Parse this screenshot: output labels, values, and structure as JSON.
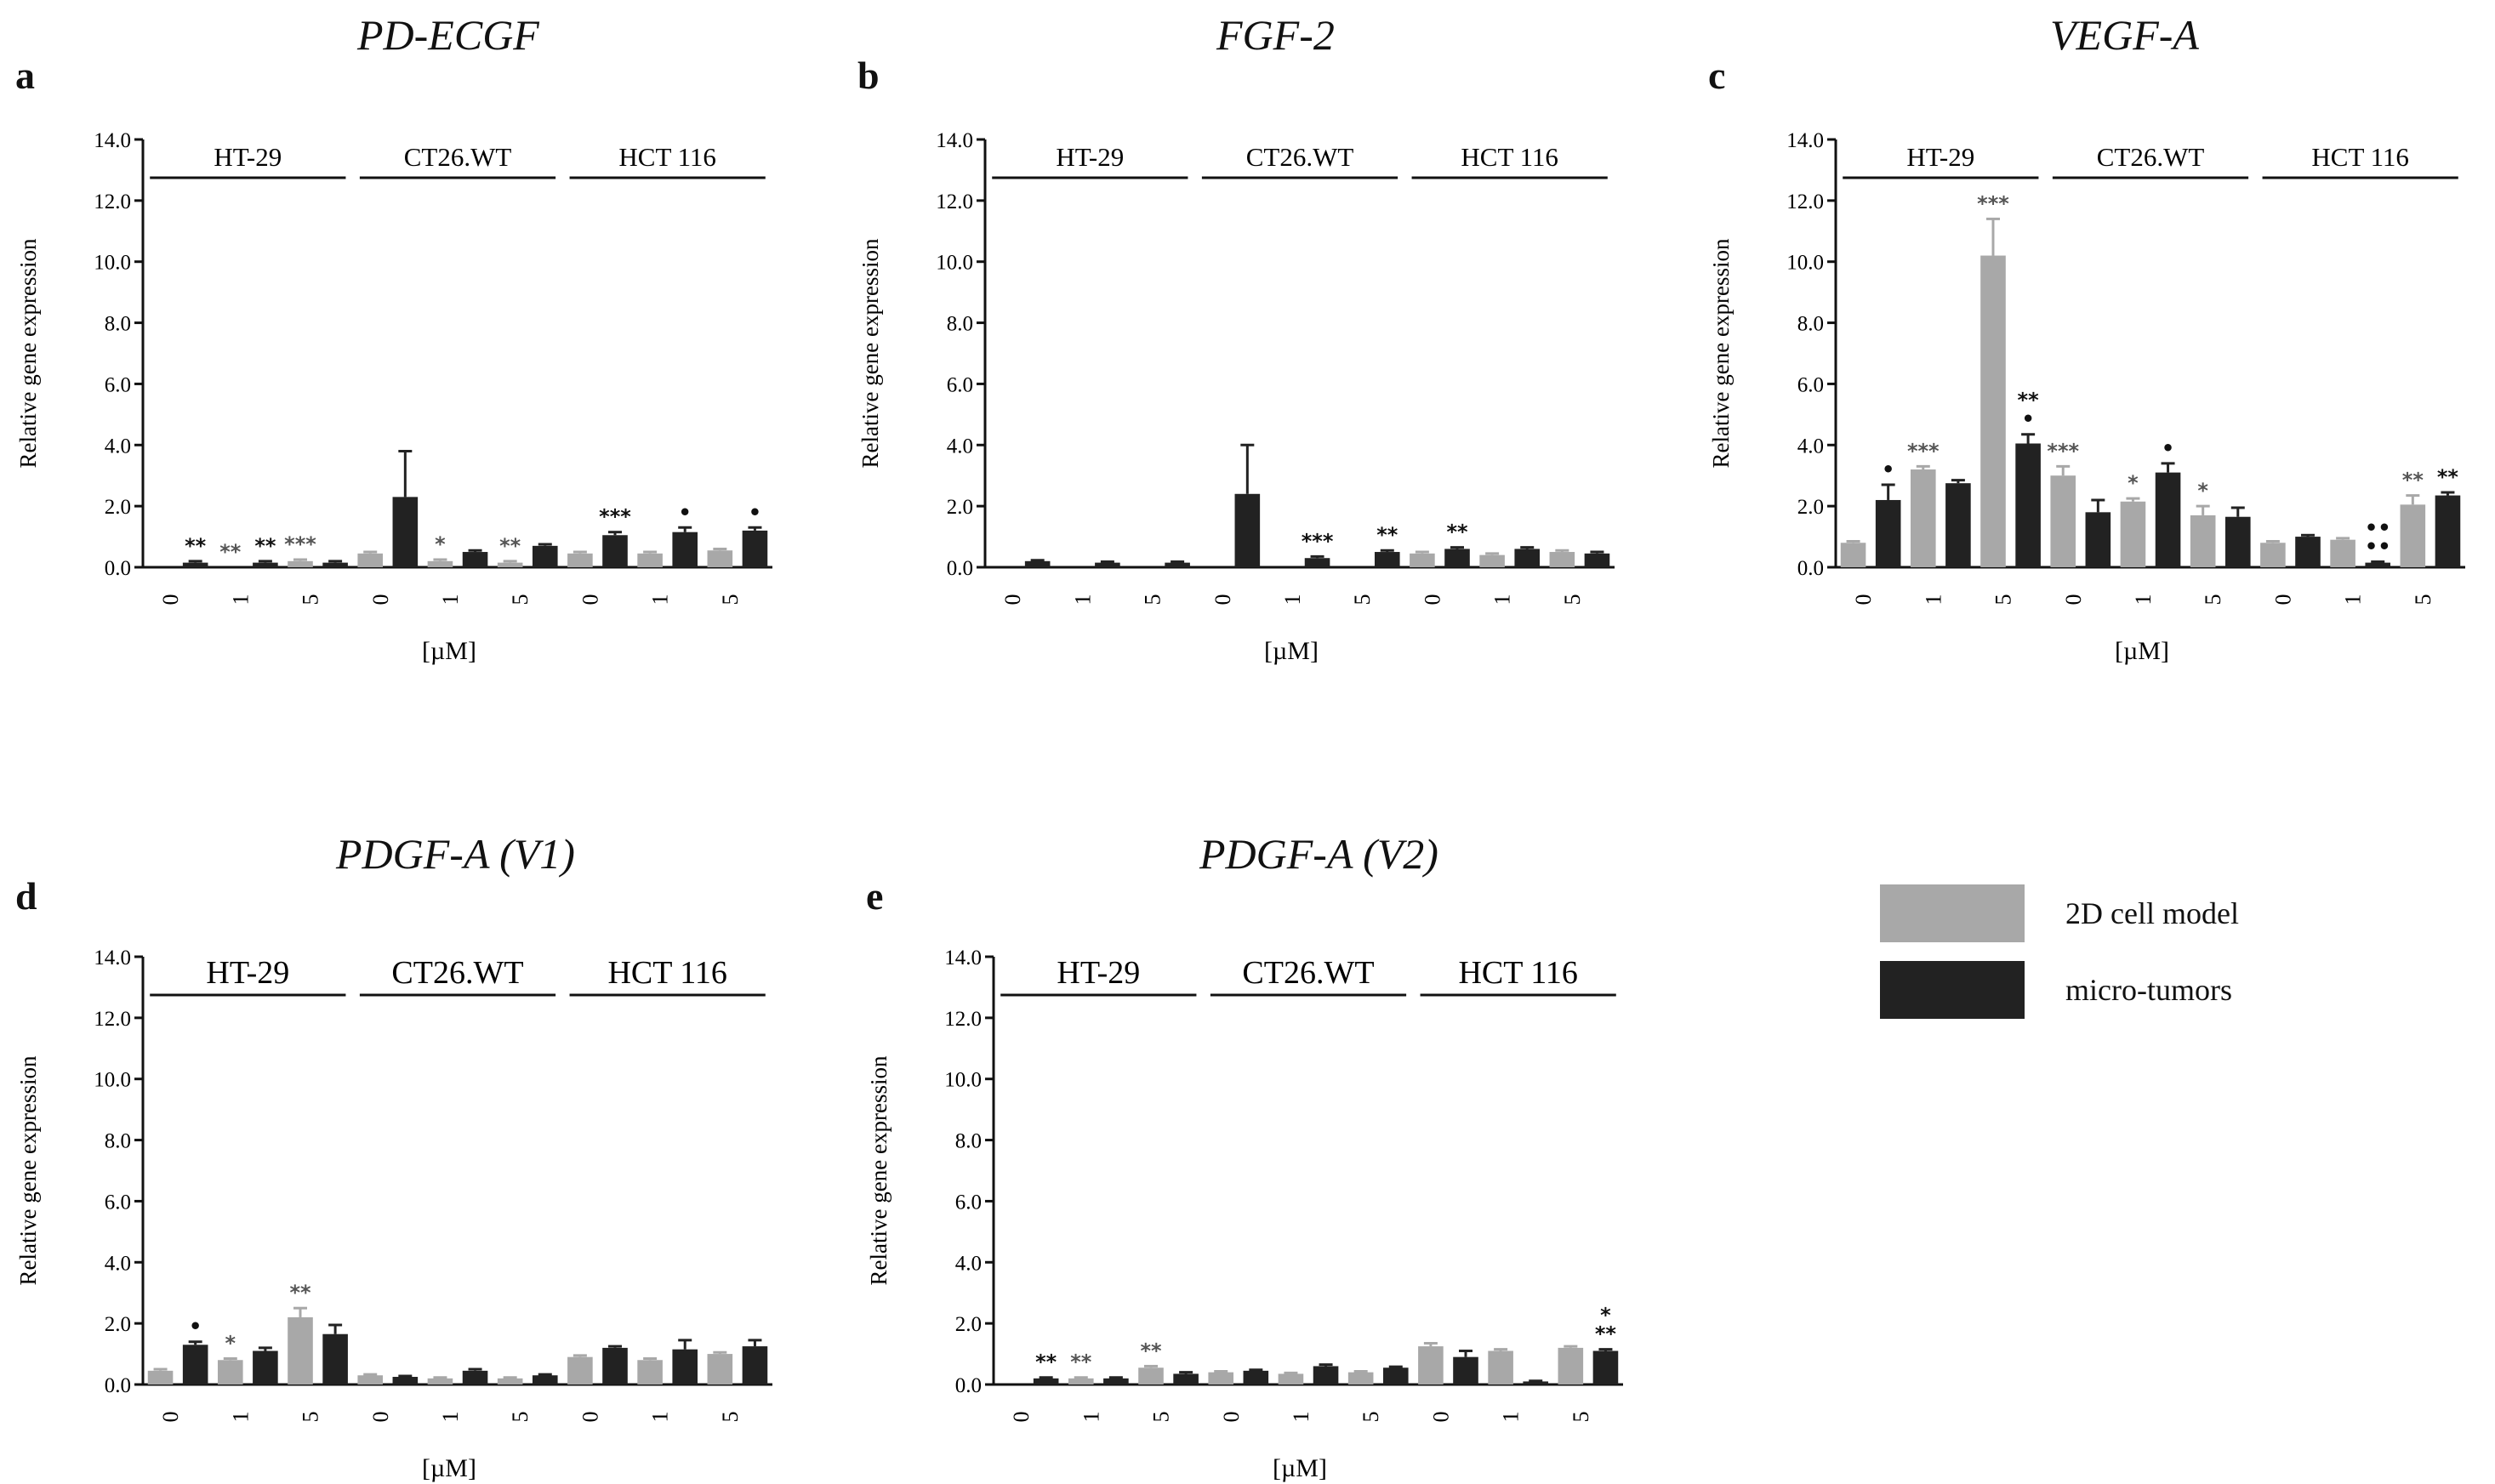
{
  "legend": {
    "items": [
      {
        "label": "2D cell model",
        "color": "#a8a8a8"
      },
      {
        "label": "micro-tumors",
        "color": "#222222"
      }
    ]
  },
  "chart_data": [
    {
      "type": "bar",
      "letter": "a",
      "title": "PD-ECGF",
      "xlabel": "[µM]",
      "ylabel": "Relative gene expression",
      "ylim": [
        0,
        14
      ],
      "yticks": [
        "0.0",
        "2.0",
        "4.0",
        "6.0",
        "8.0",
        "10.0",
        "12.0",
        "14.0"
      ],
      "groups": [
        {
          "name": "HT-29",
          "doses": [
            "0",
            "1",
            "5"
          ],
          "2d": [
            0,
            0,
            0.2
          ],
          "2d_err": [
            0,
            0,
            0.05
          ],
          "mt": [
            0.15,
            0.15,
            0.15
          ],
          "mt_err": [
            0.05,
            0.05,
            0.05
          ],
          "2d_sig": [
            "",
            "**",
            "***"
          ],
          "mt_sig": [
            "**",
            "**",
            ""
          ]
        },
        {
          "name": "CT26.WT",
          "doses": [
            "0",
            "1",
            "5"
          ],
          "2d": [
            0.45,
            0.2,
            0.15
          ],
          "2d_err": [
            0.05,
            0.05,
            0.05
          ],
          "mt": [
            2.3,
            0.5,
            0.7
          ],
          "mt_err": [
            1.5,
            0.05,
            0.05
          ],
          "2d_sig": [
            "",
            "*",
            "**"
          ],
          "mt_sig": [
            "",
            "",
            ""
          ]
        },
        {
          "name": "HCT 116",
          "doses": [
            "0",
            "1",
            "5"
          ],
          "2d": [
            0.45,
            0.45,
            0.55
          ],
          "2d_err": [
            0.05,
            0.05,
            0.05
          ],
          "mt": [
            1.05,
            1.15,
            1.2
          ],
          "mt_err": [
            0.1,
            0.15,
            0.1
          ],
          "2d_sig": [
            "",
            "",
            ""
          ],
          "mt_sig": [
            "***",
            "•",
            "•"
          ]
        }
      ]
    },
    {
      "type": "bar",
      "letter": "b",
      "title": "FGF-2",
      "xlabel": "[µM]",
      "ylabel": "Relative gene expression",
      "ylim": [
        0,
        14
      ],
      "yticks": [
        "0.0",
        "2.0",
        "4.0",
        "6.0",
        "8.0",
        "10.0",
        "12.0",
        "14.0"
      ],
      "groups": [
        {
          "name": "HT-29",
          "doses": [
            "0",
            "1",
            "5"
          ],
          "2d": [
            0,
            0,
            0
          ],
          "2d_err": [
            0,
            0,
            0
          ],
          "mt": [
            0.2,
            0.15,
            0.15
          ],
          "mt_err": [
            0.03,
            0.03,
            0.03
          ],
          "2d_sig": [
            "",
            "",
            ""
          ],
          "mt_sig": [
            "",
            "",
            ""
          ]
        },
        {
          "name": "CT26.WT",
          "doses": [
            "0",
            "1",
            "5"
          ],
          "2d": [
            0,
            0,
            0
          ],
          "2d_err": [
            0,
            0,
            0
          ],
          "mt": [
            2.4,
            0.3,
            0.5
          ],
          "mt_err": [
            1.6,
            0.05,
            0.05
          ],
          "2d_sig": [
            "",
            "",
            ""
          ],
          "mt_sig": [
            "",
            "***",
            "**"
          ]
        },
        {
          "name": "HCT 116",
          "doses": [
            "0",
            "1",
            "5"
          ],
          "2d": [
            0.45,
            0.4,
            0.5
          ],
          "2d_err": [
            0.05,
            0.05,
            0.05
          ],
          "mt": [
            0.6,
            0.6,
            0.45
          ],
          "mt_err": [
            0.05,
            0.05,
            0.05
          ],
          "2d_sig": [
            "",
            "",
            ""
          ],
          "mt_sig": [
            "**",
            "",
            ""
          ]
        }
      ]
    },
    {
      "type": "bar",
      "letter": "c",
      "title": "VEGF-A",
      "xlabel": "[µM]",
      "ylabel": "Relative gene expression",
      "ylim": [
        0,
        14
      ],
      "yticks": [
        "0.0",
        "2.0",
        "4.0",
        "6.0",
        "8.0",
        "10.0",
        "12.0",
        "14.0"
      ],
      "groups": [
        {
          "name": "HT-29",
          "doses": [
            "0",
            "1",
            "5"
          ],
          "2d": [
            0.8,
            3.2,
            10.2
          ],
          "2d_err": [
            0.05,
            0.1,
            1.2
          ],
          "mt": [
            2.2,
            2.75,
            4.05
          ],
          "mt_err": [
            0.5,
            0.1,
            0.3
          ],
          "2d_sig": [
            "",
            "***",
            "***"
          ],
          "mt_sig": [
            "•",
            "",
            "** •"
          ]
        },
        {
          "name": "CT26.WT",
          "doses": [
            "0",
            "1",
            "5"
          ],
          "2d": [
            3.0,
            2.15,
            1.7
          ],
          "2d_err": [
            0.3,
            0.1,
            0.3
          ],
          "mt": [
            1.8,
            3.1,
            1.65
          ],
          "mt_err": [
            0.4,
            0.3,
            0.3
          ],
          "2d_sig": [
            "***",
            "*",
            "*"
          ],
          "mt_sig": [
            "",
            "•",
            ""
          ]
        },
        {
          "name": "HCT 116",
          "doses": [
            "0",
            "1",
            "5"
          ],
          "2d": [
            0.8,
            0.9,
            2.05
          ],
          "2d_err": [
            0.05,
            0.05,
            0.3
          ],
          "mt": [
            1.0,
            0.15,
            2.35
          ],
          "mt_err": [
            0.05,
            0.03,
            0.1
          ],
          "2d_sig": [
            "",
            "",
            "**"
          ],
          "mt_sig": [
            "",
            "•• ••",
            "**"
          ]
        }
      ]
    },
    {
      "type": "bar",
      "letter": "d",
      "title": "PDGF-A (V1)",
      "xlabel": "[µM]",
      "ylabel": "Relative gene expression",
      "ylim": [
        0,
        14
      ],
      "yticks": [
        "0.0",
        "2.0",
        "4.0",
        "6.0",
        "8.0",
        "10.0",
        "12.0",
        "14.0"
      ],
      "groups": [
        {
          "name": "HT-29",
          "doses": [
            "0",
            "1",
            "5"
          ],
          "2d": [
            0.45,
            0.8,
            2.2
          ],
          "2d_err": [
            0.05,
            0.05,
            0.3
          ],
          "mt": [
            1.3,
            1.1,
            1.65
          ],
          "mt_err": [
            0.1,
            0.1,
            0.3
          ],
          "2d_sig": [
            "",
            "*",
            "**"
          ],
          "mt_sig": [
            "•",
            "",
            ""
          ]
        },
        {
          "name": "CT26.WT",
          "doses": [
            "0",
            "1",
            "5"
          ],
          "2d": [
            0.3,
            0.2,
            0.2
          ],
          "2d_err": [
            0.03,
            0.03,
            0.03
          ],
          "mt": [
            0.25,
            0.45,
            0.3
          ],
          "mt_err": [
            0.03,
            0.05,
            0.03
          ],
          "2d_sig": [
            "",
            "",
            ""
          ],
          "mt_sig": [
            "",
            "",
            ""
          ]
        },
        {
          "name": "HCT 116",
          "doses": [
            "0",
            "1",
            "5"
          ],
          "2d": [
            0.9,
            0.8,
            1.0
          ],
          "2d_err": [
            0.05,
            0.05,
            0.05
          ],
          "mt": [
            1.2,
            1.15,
            1.25
          ],
          "mt_err": [
            0.05,
            0.3,
            0.2
          ],
          "2d_sig": [
            "",
            "",
            ""
          ],
          "mt_sig": [
            "",
            "",
            ""
          ]
        }
      ]
    },
    {
      "type": "bar",
      "letter": "e",
      "title": "PDGF-A (V2)",
      "xlabel": "[µM]",
      "ylabel": "Relative gene expression",
      "ylim": [
        0,
        14
      ],
      "yticks": [
        "0.0",
        "2.0",
        "4.0",
        "6.0",
        "8.0",
        "10.0",
        "12.0",
        "14.0"
      ],
      "groups": [
        {
          "name": "HT-29",
          "doses": [
            "0",
            "1",
            "5"
          ],
          "2d": [
            0,
            0.2,
            0.55
          ],
          "2d_err": [
            0,
            0.03,
            0.05
          ],
          "mt": [
            0.2,
            0.2,
            0.35
          ],
          "mt_err": [
            0.03,
            0.03,
            0.05
          ],
          "2d_sig": [
            "",
            "**",
            "**"
          ],
          "mt_sig": [
            "**",
            "",
            ""
          ]
        },
        {
          "name": "CT26.WT",
          "doses": [
            "0",
            "1",
            "5"
          ],
          "2d": [
            0.4,
            0.35,
            0.4
          ],
          "2d_err": [
            0.03,
            0.03,
            0.03
          ],
          "mt": [
            0.45,
            0.6,
            0.55
          ],
          "mt_err": [
            0.03,
            0.05,
            0.03
          ],
          "2d_sig": [
            "",
            "",
            ""
          ],
          "mt_sig": [
            "",
            "",
            ""
          ]
        },
        {
          "name": "HCT 116",
          "doses": [
            "0",
            "1",
            "5"
          ],
          "2d": [
            1.25,
            1.1,
            1.2
          ],
          "2d_err": [
            0.1,
            0.05,
            0.05
          ],
          "mt": [
            0.9,
            0.1,
            1.1
          ],
          "mt_err": [
            0.2,
            0.02,
            0.05
          ],
          "2d_sig": [
            "",
            "",
            ""
          ],
          "mt_sig": [
            "",
            "",
            "* **"
          ]
        }
      ]
    }
  ]
}
